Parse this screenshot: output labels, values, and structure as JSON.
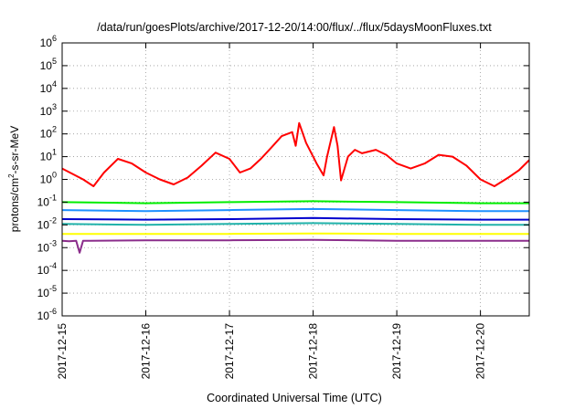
{
  "chart_data": {
    "type": "line",
    "title": "/data/run/goesPlots/archive/2017-12-20/14:00/flux/../flux/5daysMoonFluxes.txt",
    "xlabel": "Coordinated Universal Time (UTC)",
    "ylabel": {
      "prefix": "protons/cm",
      "superscript": "2",
      "suffix": "-s-sr-MeV"
    },
    "yscale": "log",
    "ylim": [
      1e-06,
      1000000
    ],
    "y_ticks": [
      {
        "base": "10",
        "exp": "6",
        "value": 1000000
      },
      {
        "base": "10",
        "exp": "5",
        "value": 100000
      },
      {
        "base": "10",
        "exp": "4",
        "value": 10000
      },
      {
        "base": "10",
        "exp": "3",
        "value": 1000
      },
      {
        "base": "10",
        "exp": "2",
        "value": 100
      },
      {
        "base": "10",
        "exp": "1",
        "value": 10
      },
      {
        "base": "10",
        "exp": "0",
        "value": 1
      },
      {
        "base": "10",
        "exp": "-1",
        "value": 0.1
      },
      {
        "base": "10",
        "exp": "-2",
        "value": 0.01
      },
      {
        "base": "10",
        "exp": "-3",
        "value": 0.001
      },
      {
        "base": "10",
        "exp": "-4",
        "value": 0.0001
      },
      {
        "base": "10",
        "exp": "-5",
        "value": 1e-05
      },
      {
        "base": "10",
        "exp": "-6",
        "value": 1e-06
      }
    ],
    "xlim": [
      "2017-12-15 00:00",
      "2017-12-20 14:00"
    ],
    "x_ticks": [
      "2017-12-15",
      "2017-12-16",
      "2017-12-17",
      "2017-12-18",
      "2017-12-19",
      "2017-12-20"
    ],
    "grid": true,
    "series": [
      {
        "color": "#ff0000",
        "x": [
          "2017-12-15 00:00",
          "2017-12-15 06:00",
          "2017-12-15 09:00",
          "2017-12-15 12:00",
          "2017-12-15 16:00",
          "2017-12-15 20:00",
          "2017-12-16 00:00",
          "2017-12-16 04:00",
          "2017-12-16 08:00",
          "2017-12-16 12:00",
          "2017-12-16 16:00",
          "2017-12-16 20:00",
          "2017-12-17 00:00",
          "2017-12-17 03:00",
          "2017-12-17 06:00",
          "2017-12-17 09:00",
          "2017-12-17 12:00",
          "2017-12-17 15:00",
          "2017-12-17 18:00",
          "2017-12-17 19:00",
          "2017-12-17 20:00",
          "2017-12-17 22:00",
          "2017-12-18 00:00",
          "2017-12-18 01:00",
          "2017-12-18 03:00",
          "2017-12-18 04:00",
          "2017-12-18 06:00",
          "2017-12-18 07:00",
          "2017-12-18 08:00",
          "2017-12-18 10:00",
          "2017-12-18 12:00",
          "2017-12-18 14:00",
          "2017-12-18 18:00",
          "2017-12-18 21:00",
          "2017-12-19 00:00",
          "2017-12-19 04:00",
          "2017-12-19 08:00",
          "2017-12-19 12:00",
          "2017-12-19 16:00",
          "2017-12-19 20:00",
          "2017-12-20 00:00",
          "2017-12-20 04:00",
          "2017-12-20 08:00",
          "2017-12-20 11:00",
          "2017-12-20 14:00"
        ],
        "values": [
          3,
          1,
          0.5,
          2,
          8,
          5,
          2,
          1,
          0.6,
          1.2,
          4,
          15,
          8,
          2,
          3,
          8,
          25,
          80,
          120,
          30,
          300,
          40,
          10,
          5,
          1.5,
          10,
          200,
          30,
          0.9,
          10,
          20,
          14,
          20,
          12,
          5,
          3,
          5,
          12,
          10,
          4,
          1,
          0.5,
          1.2,
          2.5,
          7
        ]
      },
      {
        "color": "#00ee00",
        "x": [
          "2017-12-15 00:00",
          "2017-12-16 00:00",
          "2017-12-17 00:00",
          "2017-12-18 00:00",
          "2017-12-19 00:00",
          "2017-12-20 00:00",
          "2017-12-20 14:00"
        ],
        "values": [
          0.1,
          0.09,
          0.1,
          0.11,
          0.1,
          0.09,
          0.09
        ]
      },
      {
        "color": "#1e90ff",
        "x": [
          "2017-12-15 00:00",
          "2017-12-16 00:00",
          "2017-12-17 00:00",
          "2017-12-18 00:00",
          "2017-12-19 00:00",
          "2017-12-20 00:00",
          "2017-12-20 14:00"
        ],
        "values": [
          0.045,
          0.04,
          0.045,
          0.05,
          0.045,
          0.04,
          0.04
        ]
      },
      {
        "color": "#0000cd",
        "x": [
          "2017-12-15 00:00",
          "2017-12-16 00:00",
          "2017-12-17 00:00",
          "2017-12-18 00:00",
          "2017-12-19 00:00",
          "2017-12-20 00:00",
          "2017-12-20 14:00"
        ],
        "values": [
          0.018,
          0.017,
          0.018,
          0.02,
          0.018,
          0.017,
          0.017
        ]
      },
      {
        "color": "#20b2aa",
        "x": [
          "2017-12-15 00:00",
          "2017-12-16 00:00",
          "2017-12-17 00:00",
          "2017-12-18 00:00",
          "2017-12-19 00:00",
          "2017-12-20 00:00",
          "2017-12-20 14:00"
        ],
        "values": [
          0.011,
          0.01,
          0.011,
          0.012,
          0.011,
          0.01,
          0.01
        ]
      },
      {
        "color": "#ffff00",
        "x": [
          "2017-12-15 00:00",
          "2017-12-16 00:00",
          "2017-12-17 00:00",
          "2017-12-18 00:00",
          "2017-12-19 00:00",
          "2017-12-20 00:00",
          "2017-12-20 14:00"
        ],
        "values": [
          0.004,
          0.004,
          0.004,
          0.0042,
          0.004,
          0.004,
          0.004
        ]
      },
      {
        "color": "#8b2d8b",
        "x": [
          "2017-12-15 00:00",
          "2017-12-15 02:00",
          "2017-12-15 04:00",
          "2017-12-15 05:00",
          "2017-12-15 06:00",
          "2017-12-15 08:00",
          "2017-12-16 00:00",
          "2017-12-17 00:00",
          "2017-12-18 00:00",
          "2017-12-19 00:00",
          "2017-12-20 00:00",
          "2017-12-20 14:00"
        ],
        "values": [
          0.002,
          0.0019,
          0.002,
          0.0006,
          0.002,
          0.002,
          0.0021,
          0.0021,
          0.0022,
          0.002,
          0.002,
          0.002
        ]
      }
    ]
  }
}
